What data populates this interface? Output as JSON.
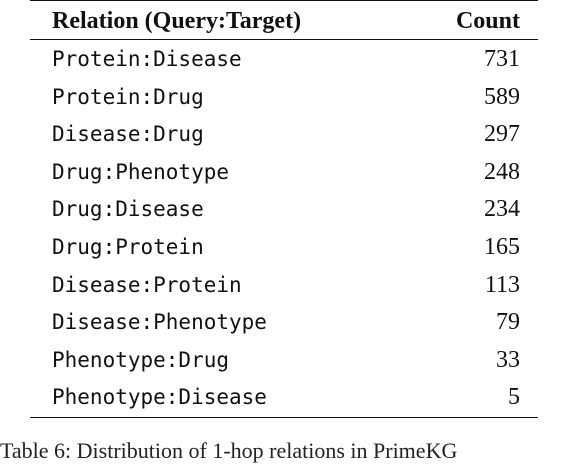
{
  "table": {
    "headers": {
      "relation": "Relation (Query:Target)",
      "count": "Count"
    },
    "rows": [
      {
        "relation": "Protein:Disease",
        "count": "731"
      },
      {
        "relation": "Protein:Drug",
        "count": "589"
      },
      {
        "relation": "Disease:Drug",
        "count": "297"
      },
      {
        "relation": "Drug:Phenotype",
        "count": "248"
      },
      {
        "relation": "Drug:Disease",
        "count": "234"
      },
      {
        "relation": "Drug:Protein",
        "count": "165"
      },
      {
        "relation": "Disease:Protein",
        "count": "113"
      },
      {
        "relation": "Disease:Phenotype",
        "count": "79"
      },
      {
        "relation": "Phenotype:Drug",
        "count": "33"
      },
      {
        "relation": "Phenotype:Disease",
        "count": "5"
      }
    ]
  },
  "caption": "Table 6: Distribution of 1-hop relations in PrimeKG"
}
